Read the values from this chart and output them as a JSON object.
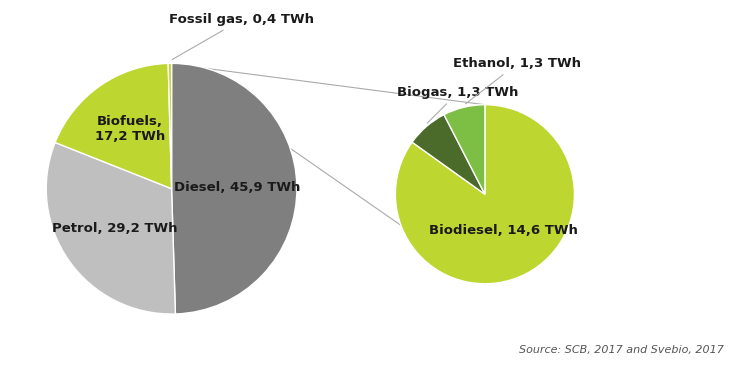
{
  "left_pie": {
    "labels": [
      "Diesel, 45,9 TWh",
      "Petrol, 29,2 TWh",
      "Biofuels,\n17,2 TWh",
      "Fossil gas, 0,4 TWh"
    ],
    "values": [
      45.9,
      29.2,
      17.2,
      0.4
    ],
    "colors": [
      "#7f7f7f",
      "#bfbfbf",
      "#bdd630",
      "#bdd630"
    ],
    "startangle": 90,
    "label_offsets": [
      0.55,
      0.6,
      0.62,
      1.35
    ]
  },
  "right_pie": {
    "labels": [
      "Biodiesel, 14,6 TWh",
      "Biogas, 1,3 TWh",
      "Ethanol, 1,3 TWh"
    ],
    "values": [
      14.6,
      1.3,
      1.3
    ],
    "colors": [
      "#bdd630",
      "#4a6b2a",
      "#7dbe44"
    ],
    "startangle": 90,
    "label_offsets": [
      0.5,
      1.45,
      1.45
    ]
  },
  "source_text": "Source: SCB, 2017 and Svebio, 2017",
  "background_color": "#ffffff",
  "label_color": "#1a1a1a",
  "label_fontsize": 9.5,
  "label_fontweight": "bold"
}
